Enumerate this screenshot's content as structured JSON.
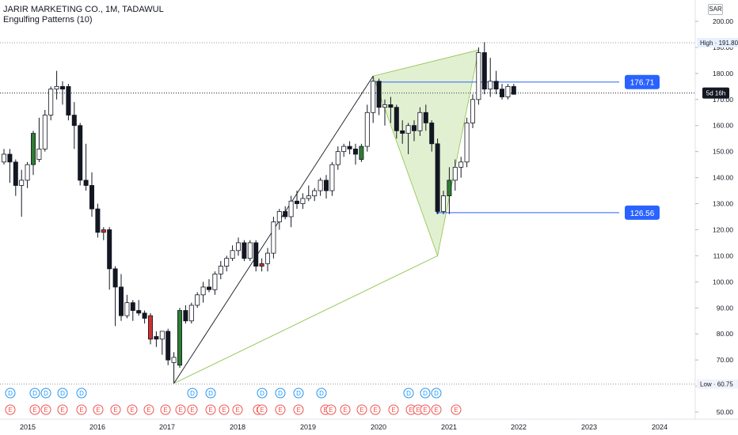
{
  "header": {
    "symbol_line": "JARIR MARKETING CO., 1M, TADAWUL",
    "indicator_line": "Engulfing Patterns (10)",
    "currency": "SAR"
  },
  "chart_data": {
    "type": "candlestick",
    "ylim": [
      50,
      205
    ],
    "y_ticks": [
      "200.00",
      "190.00",
      "180.00",
      "170.00",
      "160.00",
      "150.00",
      "140.00",
      "130.00",
      "120.00",
      "110.00",
      "100.00",
      "90.00",
      "80.00",
      "70.00",
      "60.00",
      "50.00"
    ],
    "x_ticks": [
      "2015",
      "2016",
      "2017",
      "2018",
      "2019",
      "2020",
      "2021",
      "2022",
      "2023",
      "2024"
    ],
    "high_label": "High · 191.80",
    "high_value": 191.8,
    "low_label": "Low · 60.75",
    "low_value": 60.75,
    "countdown_label": "5d 16h",
    "current_value": 172.5,
    "price_lines": [
      {
        "label": "176.71",
        "value": 176.71
      },
      {
        "label": "126.56",
        "value": 126.56
      }
    ],
    "bull_color": "#26a69a",
    "bear_color": "#ef5350",
    "engulfing_bull_color": "#2e7d32",
    "engulfing_bear_color": "#d32f2f",
    "candles": [
      {
        "o": 146,
        "h": 151,
        "l": 145,
        "c": 149
      },
      {
        "o": 149,
        "h": 151,
        "l": 138,
        "c": 146
      },
      {
        "o": 146,
        "h": 147,
        "l": 133,
        "c": 137
      },
      {
        "o": 137,
        "h": 143,
        "l": 125,
        "c": 139
      },
      {
        "o": 139,
        "h": 146,
        "l": 136,
        "c": 145
      },
      {
        "o": 145,
        "h": 158,
        "l": 141,
        "c": 157
      },
      {
        "o": 147,
        "h": 163,
        "l": 146,
        "c": 151
      },
      {
        "o": 151,
        "h": 166,
        "l": 150,
        "c": 164
      },
      {
        "o": 164,
        "h": 175,
        "l": 162,
        "c": 174
      },
      {
        "o": 174,
        "h": 181,
        "l": 170,
        "c": 175
      },
      {
        "o": 175,
        "h": 177,
        "l": 168,
        "c": 174
      },
      {
        "o": 175,
        "h": 176,
        "l": 162,
        "c": 164
      },
      {
        "o": 164,
        "h": 169,
        "l": 151,
        "c": 160
      },
      {
        "o": 160,
        "h": 161,
        "l": 137,
        "c": 139
      },
      {
        "o": 139,
        "h": 153,
        "l": 135,
        "c": 137
      },
      {
        "o": 137,
        "h": 142,
        "l": 125,
        "c": 128
      },
      {
        "o": 128,
        "h": 130,
        "l": 117,
        "c": 119
      },
      {
        "o": 119,
        "h": 121,
        "l": 116,
        "c": 120
      },
      {
        "o": 120,
        "h": 121,
        "l": 97,
        "c": 105
      },
      {
        "o": 105,
        "h": 106,
        "l": 83,
        "c": 98
      },
      {
        "o": 98,
        "h": 103,
        "l": 85,
        "c": 87
      },
      {
        "o": 87,
        "h": 95,
        "l": 86,
        "c": 92
      },
      {
        "o": 92,
        "h": 93,
        "l": 85,
        "c": 89
      },
      {
        "o": 89,
        "h": 93,
        "l": 87,
        "c": 88
      },
      {
        "o": 88,
        "h": 89,
        "l": 84,
        "c": 86
      },
      {
        "o": 78,
        "h": 88,
        "l": 76,
        "c": 87
      },
      {
        "o": 79,
        "h": 81,
        "l": 75,
        "c": 78
      },
      {
        "o": 78,
        "h": 80,
        "l": 72,
        "c": 81
      },
      {
        "o": 81,
        "h": 82,
        "l": 68,
        "c": 70
      },
      {
        "o": 69,
        "h": 73,
        "l": 61,
        "c": 71
      },
      {
        "o": 68,
        "h": 90,
        "l": 67,
        "c": 89
      },
      {
        "o": 89,
        "h": 91,
        "l": 84,
        "c": 85
      },
      {
        "o": 85,
        "h": 92,
        "l": 84,
        "c": 91
      },
      {
        "o": 91,
        "h": 96,
        "l": 90,
        "c": 95
      },
      {
        "o": 95,
        "h": 100,
        "l": 92,
        "c": 98
      },
      {
        "o": 98,
        "h": 101,
        "l": 96,
        "c": 97
      },
      {
        "o": 97,
        "h": 104,
        "l": 95,
        "c": 103
      },
      {
        "o": 103,
        "h": 108,
        "l": 101,
        "c": 106
      },
      {
        "o": 106,
        "h": 110,
        "l": 104,
        "c": 109
      },
      {
        "o": 109,
        "h": 114,
        "l": 108,
        "c": 112
      },
      {
        "o": 112,
        "h": 117,
        "l": 110,
        "c": 115
      },
      {
        "o": 115,
        "h": 116,
        "l": 108,
        "c": 109
      },
      {
        "o": 109,
        "h": 116,
        "l": 108,
        "c": 115
      },
      {
        "o": 115,
        "h": 116,
        "l": 104,
        "c": 106
      },
      {
        "o": 106,
        "h": 109,
        "l": 104,
        "c": 107
      },
      {
        "o": 107,
        "h": 113,
        "l": 104,
        "c": 111
      },
      {
        "o": 111,
        "h": 125,
        "l": 109,
        "c": 123
      },
      {
        "o": 123,
        "h": 128,
        "l": 120,
        "c": 127
      },
      {
        "o": 127,
        "h": 129,
        "l": 124,
        "c": 125
      },
      {
        "o": 125,
        "h": 133,
        "l": 121,
        "c": 131
      },
      {
        "o": 131,
        "h": 135,
        "l": 128,
        "c": 130
      },
      {
        "o": 130,
        "h": 134,
        "l": 128,
        "c": 132
      },
      {
        "o": 132,
        "h": 137,
        "l": 131,
        "c": 133
      },
      {
        "o": 133,
        "h": 136,
        "l": 131,
        "c": 135
      },
      {
        "o": 135,
        "h": 140,
        "l": 133,
        "c": 139
      },
      {
        "o": 139,
        "h": 141,
        "l": 132,
        "c": 135
      },
      {
        "o": 135,
        "h": 146,
        "l": 133,
        "c": 145
      },
      {
        "o": 145,
        "h": 152,
        "l": 143,
        "c": 150
      },
      {
        "o": 150,
        "h": 153,
        "l": 148,
        "c": 152
      },
      {
        "o": 152,
        "h": 154,
        "l": 149,
        "c": 151
      },
      {
        "o": 151,
        "h": 153,
        "l": 145,
        "c": 149
      },
      {
        "o": 147,
        "h": 153,
        "l": 146,
        "c": 152
      },
      {
        "o": 152,
        "h": 168,
        "l": 150,
        "c": 165
      },
      {
        "o": 165,
        "h": 179,
        "l": 161,
        "c": 177
      },
      {
        "o": 177,
        "h": 178,
        "l": 164,
        "c": 167
      },
      {
        "o": 167,
        "h": 170,
        "l": 160,
        "c": 168
      },
      {
        "o": 168,
        "h": 171,
        "l": 161,
        "c": 167
      },
      {
        "o": 167,
        "h": 168,
        "l": 155,
        "c": 158
      },
      {
        "o": 158,
        "h": 162,
        "l": 153,
        "c": 157
      },
      {
        "o": 157,
        "h": 161,
        "l": 149,
        "c": 160
      },
      {
        "o": 160,
        "h": 162,
        "l": 154,
        "c": 158
      },
      {
        "o": 158,
        "h": 167,
        "l": 156,
        "c": 165
      },
      {
        "o": 165,
        "h": 168,
        "l": 158,
        "c": 161
      },
      {
        "o": 161,
        "h": 162,
        "l": 150,
        "c": 153
      },
      {
        "o": 153,
        "h": 155,
        "l": 126,
        "c": 127
      },
      {
        "o": 127,
        "h": 135,
        "l": 126,
        "c": 133
      },
      {
        "o": 133,
        "h": 144,
        "l": 126,
        "c": 139
      },
      {
        "o": 139,
        "h": 147,
        "l": 135,
        "c": 144
      },
      {
        "o": 144,
        "h": 148,
        "l": 140,
        "c": 146
      },
      {
        "o": 146,
        "h": 163,
        "l": 144,
        "c": 161
      },
      {
        "o": 161,
        "h": 172,
        "l": 159,
        "c": 170
      },
      {
        "o": 170,
        "h": 190,
        "l": 168,
        "c": 188
      },
      {
        "o": 188,
        "h": 192,
        "l": 172,
        "c": 174
      },
      {
        "o": 174,
        "h": 186,
        "l": 171,
        "c": 177
      },
      {
        "o": 177,
        "h": 181,
        "l": 172,
        "c": 174
      },
      {
        "o": 174,
        "h": 176,
        "l": 170,
        "c": 171
      },
      {
        "o": 171,
        "h": 176,
        "l": 170,
        "c": 175
      },
      {
        "o": 175,
        "h": 176,
        "l": 172,
        "c": 172
      }
    ],
    "engulfing_bull": [
      5,
      30,
      61,
      76
    ],
    "engulfing_bear": [
      17,
      25,
      44
    ],
    "event_markers_D": [
      "D",
      "D",
      "D",
      "D",
      "D",
      "D",
      "D",
      "D",
      "D",
      "D",
      "D",
      "D",
      "D",
      "D"
    ],
    "event_markers_E": [
      "E",
      "E",
      "E",
      "E",
      "E",
      "E",
      "E",
      "E",
      "E",
      "E",
      "E",
      "E",
      "E",
      "E",
      "E",
      "E",
      "E",
      "E",
      "E",
      "E",
      "E",
      "E",
      "E",
      "E",
      "E",
      "E",
      "E",
      "E",
      "E",
      "E"
    ]
  }
}
